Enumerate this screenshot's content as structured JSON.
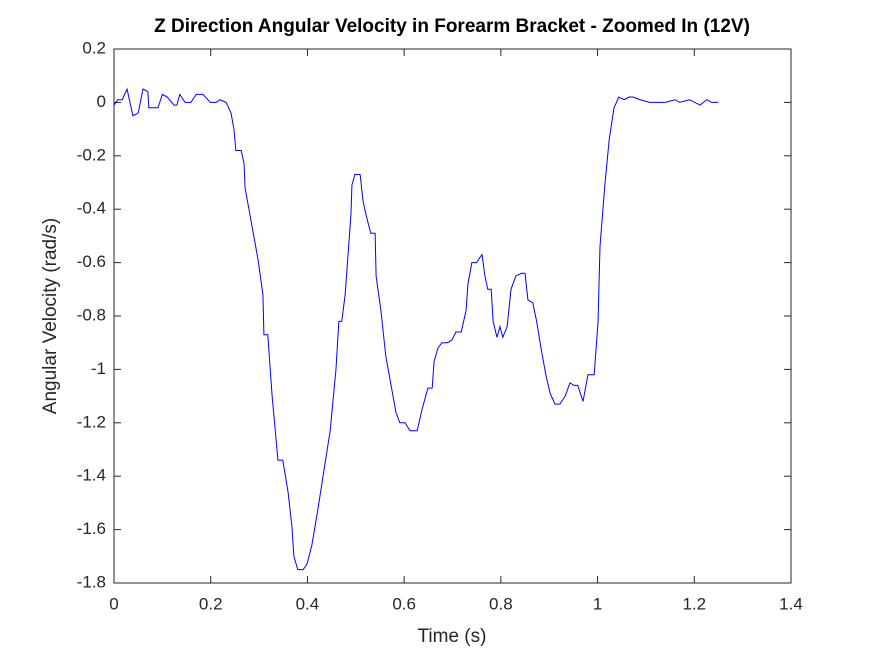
{
  "chart_data": {
    "type": "line",
    "title": "Z Direction Angular Velocity in Forearm Bracket - Zoomed In (12V)",
    "x_label": "Time (s)",
    "y_label": "Angular Velocity (rad/s)",
    "xlim": [
      0,
      1.4
    ],
    "ylim": [
      -1.8,
      0.2
    ],
    "xticks": [
      0,
      0.2,
      0.4,
      0.6,
      0.8,
      1,
      1.2,
      1.4
    ],
    "yticks": [
      -1.8,
      -1.6,
      -1.4,
      -1.2,
      -1,
      -0.8,
      -0.6,
      -0.4,
      -0.2,
      0,
      0.2
    ],
    "x": [
      0,
      0.008,
      0.017,
      0.027,
      0.039,
      0.05,
      0.06,
      0.07,
      0.072,
      0.091,
      0.1,
      0.11,
      0.124,
      0.13,
      0.136,
      0.147,
      0.159,
      0.17,
      0.184,
      0.199,
      0.211,
      0.219,
      0.232,
      0.242,
      0.248,
      0.252,
      0.263,
      0.269,
      0.271,
      0.285,
      0.298,
      0.308,
      0.31,
      0.318,
      0.327,
      0.339,
      0.349,
      0.36,
      0.368,
      0.372,
      0.38,
      0.391,
      0.399,
      0.409,
      0.422,
      0.434,
      0.447,
      0.459,
      0.465,
      0.471,
      0.478,
      0.484,
      0.49,
      0.492,
      0.498,
      0.509,
      0.515,
      0.521,
      0.531,
      0.54,
      0.542,
      0.552,
      0.562,
      0.573,
      0.583,
      0.591,
      0.602,
      0.612,
      0.627,
      0.637,
      0.649,
      0.658,
      0.662,
      0.67,
      0.678,
      0.689,
      0.699,
      0.707,
      0.718,
      0.728,
      0.732,
      0.74,
      0.75,
      0.757,
      0.761,
      0.767,
      0.773,
      0.78,
      0.784,
      0.792,
      0.798,
      0.804,
      0.813,
      0.821,
      0.831,
      0.843,
      0.85,
      0.856,
      0.866,
      0.874,
      0.883,
      0.893,
      0.902,
      0.912,
      0.922,
      0.933,
      0.943,
      0.951,
      0.959,
      0.97,
      0.98,
      0.993,
      1.001,
      1.005,
      1.015,
      1.024,
      1.034,
      1.044,
      1.055,
      1.065,
      1.073,
      1.088,
      1.108,
      1.119,
      1.14,
      1.16,
      1.17,
      1.19,
      1.212,
      1.226,
      1.236,
      1.25
    ],
    "series": [
      {
        "color": "#0000ff",
        "values": [
          -0.01,
          0.01,
          0.01,
          0.05,
          -0.05,
          -0.04,
          0.05,
          0.04,
          -0.02,
          -0.02,
          0.03,
          0.02,
          -0.01,
          -0.01,
          0.03,
          0,
          0,
          0.03,
          0.03,
          0,
          0,
          0.01,
          0,
          -0.04,
          -0.1,
          -0.18,
          -0.18,
          -0.23,
          -0.32,
          -0.46,
          -0.59,
          -0.72,
          -0.87,
          -0.87,
          -1.1,
          -1.34,
          -1.34,
          -1.46,
          -1.59,
          -1.7,
          -1.75,
          -1.75,
          -1.73,
          -1.66,
          -1.52,
          -1.38,
          -1.23,
          -1,
          -0.82,
          -0.82,
          -0.72,
          -0.57,
          -0.42,
          -0.31,
          -0.27,
          -0.27,
          -0.37,
          -0.42,
          -0.49,
          -0.49,
          -0.65,
          -0.78,
          -0.95,
          -1.06,
          -1.16,
          -1.2,
          -1.2,
          -1.23,
          -1.23,
          -1.15,
          -1.07,
          -1.07,
          -0.97,
          -0.92,
          -0.9,
          -0.9,
          -0.89,
          -0.86,
          -0.86,
          -0.78,
          -0.68,
          -0.6,
          -0.6,
          -0.58,
          -0.57,
          -0.65,
          -0.7,
          -0.7,
          -0.82,
          -0.88,
          -0.84,
          -0.88,
          -0.84,
          -0.7,
          -0.65,
          -0.64,
          -0.64,
          -0.74,
          -0.75,
          -0.82,
          -0.92,
          -1.02,
          -1.09,
          -1.13,
          -1.13,
          -1.1,
          -1.05,
          -1.06,
          -1.06,
          -1.12,
          -1.02,
          -1.02,
          -0.82,
          -0.54,
          -0.31,
          -0.14,
          -0.02,
          0.02,
          0.01,
          0.02,
          0.02,
          0.01,
          0,
          0,
          0,
          0.01,
          0,
          0.01,
          -0.01,
          0.01,
          0,
          0
        ]
      }
    ]
  }
}
